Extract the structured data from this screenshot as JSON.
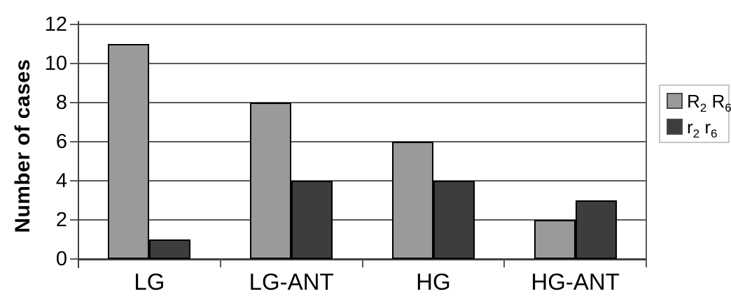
{
  "chart_data": {
    "type": "bar",
    "title": "",
    "xlabel": "",
    "ylabel": "Number of cases",
    "categories": [
      "LG",
      "LG-ANT",
      "HG",
      "HG-ANT"
    ],
    "series": [
      {
        "name": "R2 R6",
        "color": "#9a9a9a",
        "values": [
          11,
          8,
          6,
          2
        ]
      },
      {
        "name": "r2 r6",
        "color": "#3d3d3d",
        "values": [
          1,
          4,
          4,
          3
        ]
      }
    ],
    "ylim": [
      0,
      12
    ],
    "yticks": [
      0,
      2,
      4,
      6,
      8,
      10,
      12
    ],
    "grid": true,
    "legend_position": "right"
  },
  "legend": {
    "items": [
      {
        "base1": "R",
        "sub1": "2",
        "base2": "R",
        "sub2": "6",
        "color": "#9a9a9a"
      },
      {
        "base1": "r",
        "sub1": "2",
        "base2": "r",
        "sub2": "6",
        "color": "#3d3d3d"
      }
    ]
  },
  "colors": {
    "background": "#ffffff",
    "gridline": "#595959",
    "axis": "#404040",
    "bar_border": "#000000",
    "legend_border": "#c6c6c6",
    "text": "#000000"
  }
}
